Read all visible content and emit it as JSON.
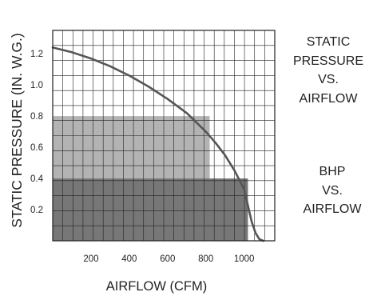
{
  "chart_data": {
    "type": "area",
    "xlabel": "AIRFLOW (CFM)",
    "ylabel": "STATIC PRESSURE (IN. W.G.)",
    "x_ticks": [
      "200",
      "400",
      "600",
      "800",
      "1000"
    ],
    "x_tick_values": [
      200,
      400,
      600,
      800,
      1000
    ],
    "y_ticks": [
      "0.2",
      "0.4",
      "0.6",
      "0.8",
      "1.0",
      "1.2"
    ],
    "y_tick_values": [
      0.2,
      0.4,
      0.6,
      0.8,
      1.0,
      1.2
    ],
    "xlim": [
      0,
      1160
    ],
    "ylim": [
      0,
      1.35
    ],
    "grid": true,
    "series": [
      {
        "type": "line",
        "x": [
          0,
          100,
          200,
          300,
          400,
          500,
          600,
          700,
          800,
          850,
          900,
          950,
          1000,
          1040,
          1060,
          1080,
          1100
        ],
        "y": [
          1.24,
          1.21,
          1.17,
          1.12,
          1.06,
          0.99,
          0.91,
          0.82,
          0.7,
          0.63,
          0.55,
          0.45,
          0.33,
          0.12,
          0.05,
          0.01,
          0.0
        ],
        "color": "#555555"
      },
      {
        "type": "region",
        "x_range": [
          0,
          820
        ],
        "y_range": [
          0,
          0.8
        ],
        "color": "#b3b3b3"
      },
      {
        "type": "region",
        "x_range": [
          0,
          1020
        ],
        "y_range": [
          0,
          0.4
        ],
        "color": "#777777"
      }
    ]
  },
  "side_labels": {
    "static_vs_airflow": [
      "STATIC",
      "PRESSURE",
      "VS.",
      "AIRFLOW"
    ],
    "bhp_vs_airflow": [
      "BHP",
      "VS.",
      "AIRFLOW"
    ]
  }
}
